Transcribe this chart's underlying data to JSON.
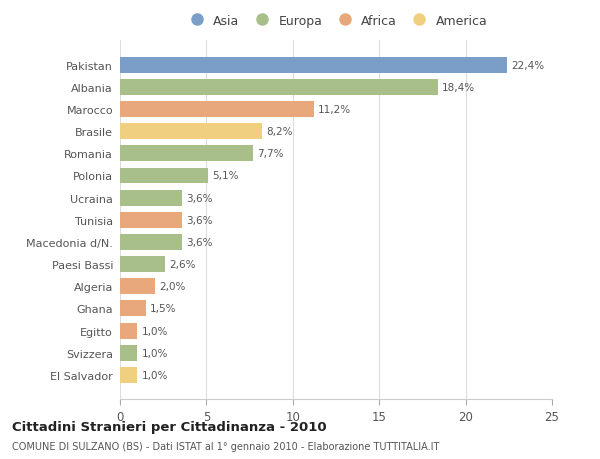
{
  "countries": [
    "Pakistan",
    "Albania",
    "Marocco",
    "Brasile",
    "Romania",
    "Polonia",
    "Ucraina",
    "Tunisia",
    "Macedonia d/N.",
    "Paesi Bassi",
    "Algeria",
    "Ghana",
    "Egitto",
    "Svizzera",
    "El Salvador"
  ],
  "values": [
    22.4,
    18.4,
    11.2,
    8.2,
    7.7,
    5.1,
    3.6,
    3.6,
    3.6,
    2.6,
    2.0,
    1.5,
    1.0,
    1.0,
    1.0
  ],
  "labels": [
    "22,4%",
    "18,4%",
    "11,2%",
    "8,2%",
    "7,7%",
    "5,1%",
    "3,6%",
    "3,6%",
    "3,6%",
    "2,6%",
    "2,0%",
    "1,5%",
    "1,0%",
    "1,0%",
    "1,0%"
  ],
  "continents": [
    "Asia",
    "Europa",
    "Africa",
    "America",
    "Europa",
    "Europa",
    "Europa",
    "Africa",
    "Europa",
    "Europa",
    "Africa",
    "Africa",
    "Africa",
    "Europa",
    "America"
  ],
  "colors": {
    "Asia": "#7b9ec9",
    "Europa": "#a8bf8a",
    "Africa": "#e8a87c",
    "America": "#f0d080"
  },
  "legend_order": [
    "Asia",
    "Europa",
    "Africa",
    "America"
  ],
  "title": "Cittadini Stranieri per Cittadinanza - 2010",
  "subtitle": "COMUNE DI SULZANO (BS) - Dati ISTAT al 1° gennaio 2010 - Elaborazione TUTTITALIA.IT",
  "xlim": [
    0,
    25
  ],
  "xticks": [
    0,
    5,
    10,
    15,
    20,
    25
  ],
  "background_color": "#ffffff",
  "grid_color": "#dddddd"
}
